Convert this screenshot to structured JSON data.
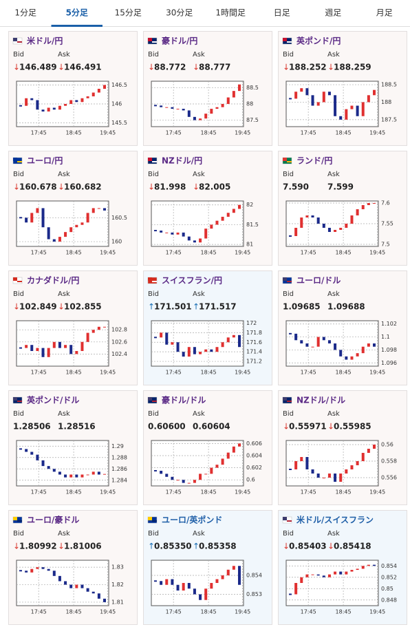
{
  "tabs": [
    "1分足",
    "5分足",
    "15分足",
    "30分足",
    "1時間足",
    "日足",
    "週足",
    "月足"
  ],
  "active_tab": 1,
  "labels": {
    "bid": "Bid",
    "ask": "Ask"
  },
  "time_labels": [
    "17:45",
    "18:45",
    "19:45"
  ],
  "cards": [
    {
      "title": "米ドル/円",
      "title_color": "#5b2a86",
      "bg": "#fbf7f6",
      "flag": [
        "#ffffff",
        "#b22234",
        "#3c3b6e"
      ],
      "arrow": "↓",
      "arrow_color": "#d9342b",
      "bid": "146.489",
      "ask": "146.491",
      "ylim": [
        145.4,
        146.6
      ],
      "yticks": [
        145.5,
        146,
        146.5
      ],
      "closes": [
        145.95,
        146.15,
        146.1,
        145.85,
        145.8,
        145.9,
        145.85,
        145.95,
        146.0,
        146.1,
        146.05,
        146.15,
        146.2,
        146.3,
        146.4,
        146.5
      ]
    },
    {
      "title": "豪ドル/円",
      "title_color": "#5b2a86",
      "bg": "#fbf7f6",
      "flag": [
        "#012169",
        "#ffffff",
        "#c8102e"
      ],
      "arrow": "↓",
      "arrow_color": "#d9342b",
      "bid": "88.772",
      "ask": "88.777",
      "ylim": [
        87.3,
        88.7
      ],
      "yticks": [
        87.5,
        88,
        88.5
      ],
      "closes": [
        87.95,
        87.9,
        87.9,
        87.85,
        87.85,
        87.8,
        87.6,
        87.5,
        87.55,
        87.7,
        87.85,
        87.9,
        88.0,
        88.2,
        88.4,
        88.6
      ]
    },
    {
      "title": "英ポンド/円",
      "title_color": "#5b2a86",
      "bg": "#fbf7f6",
      "flag": [
        "#012169",
        "#ffffff",
        "#c8102e"
      ],
      "arrow": "↓",
      "arrow_color": "#d9342b",
      "bid": "188.252",
      "ask": "188.259",
      "ylim": [
        187.3,
        188.6
      ],
      "yticks": [
        187.5,
        188,
        188.5
      ],
      "closes": [
        188.1,
        188.3,
        188.4,
        188.2,
        187.9,
        188.0,
        188.3,
        188.2,
        187.6,
        187.5,
        187.8,
        187.9,
        187.6,
        188.0,
        188.2,
        188.35
      ]
    },
    {
      "title": "ユーロ/円",
      "title_color": "#5b2a86",
      "bg": "#fbf7f6",
      "flag": [
        "#003399",
        "#ffcc00",
        "#003399"
      ],
      "arrow": "↓",
      "arrow_color": "#d9342b",
      "bid": "160.678",
      "ask": "160.682",
      "ylim": [
        159.9,
        160.85
      ],
      "yticks": [
        160,
        160.5
      ],
      "closes": [
        160.5,
        160.4,
        160.6,
        160.7,
        160.3,
        160.05,
        160.0,
        160.1,
        160.2,
        160.3,
        160.35,
        160.4,
        160.6,
        160.7,
        160.7,
        160.65
      ]
    },
    {
      "title": "NZドル/円",
      "title_color": "#5b2a86",
      "bg": "#fbf7f6",
      "flag": [
        "#012169",
        "#ffffff",
        "#c8102e"
      ],
      "arrow": "↓",
      "arrow_color": "#d9342b",
      "bid": "81.998",
      "ask": "82.005",
      "ylim": [
        80.95,
        82.1
      ],
      "yticks": [
        81,
        81.5,
        82
      ],
      "closes": [
        81.35,
        81.3,
        81.3,
        81.25,
        81.3,
        81.2,
        81.1,
        81.05,
        81.15,
        81.4,
        81.5,
        81.6,
        81.7,
        81.8,
        81.9,
        82.0
      ]
    },
    {
      "title": "ランド/円",
      "title_color": "#5b2a86",
      "bg": "#fbf7f6",
      "flag": [
        "#007a4d",
        "#ffb612",
        "#de3831"
      ],
      "bid": "7.590",
      "ask": "7.599",
      "ylim": [
        7.495,
        7.605
      ],
      "yticks": [
        7.5,
        7.55,
        7.6
      ],
      "closes": [
        7.52,
        7.54,
        7.565,
        7.57,
        7.565,
        7.55,
        7.54,
        7.53,
        7.535,
        7.54,
        7.55,
        7.57,
        7.585,
        7.595,
        7.6,
        7.6
      ]
    },
    {
      "title": "カナダドル/円",
      "title_color": "#5b2a86",
      "bg": "#fbf7f6",
      "flag": [
        "#ffffff",
        "#d52b1e",
        "#d52b1e"
      ],
      "arrow": "↓",
      "arrow_color": "#d9342b",
      "bid": "102.849",
      "ask": "102.855",
      "ylim": [
        102.2,
        102.95
      ],
      "yticks": [
        102.4,
        102.6,
        102.8
      ],
      "closes": [
        102.5,
        102.55,
        102.45,
        102.5,
        102.35,
        102.5,
        102.6,
        102.5,
        102.55,
        102.4,
        102.45,
        102.6,
        102.75,
        102.8,
        102.85,
        102.85
      ]
    },
    {
      "title": "スイスフラン/円",
      "title_color": "#5b2a86",
      "bg": "#f1f7fc",
      "flag": [
        "#d52b1e",
        "#ffffff",
        "#d52b1e"
      ],
      "arrow": "↑",
      "arrow_color": "#1a6fb5",
      "bid": "171.501",
      "ask": "171.517",
      "ylim": [
        171.1,
        172.05
      ],
      "yticks": [
        171.2,
        171.4,
        171.6,
        171.8,
        172
      ],
      "closes": [
        171.7,
        171.8,
        171.55,
        171.6,
        171.4,
        171.3,
        171.5,
        171.35,
        171.4,
        171.45,
        171.4,
        171.5,
        171.6,
        171.7,
        171.75,
        171.5
      ]
    },
    {
      "title": "ユーロ/ドル",
      "title_color": "#5b2a86",
      "bg": "#fbf7f6",
      "flag": [
        "#003399",
        "#b22234",
        "#3c3b6e"
      ],
      "bid": "1.09685",
      "ask": "1.09688",
      "ylim": [
        1.0955,
        1.1025
      ],
      "yticks": [
        1.096,
        1.098,
        1.1,
        1.102
      ],
      "closes": [
        1.1005,
        1.0995,
        1.099,
        1.0985,
        1.0985,
        1.1,
        1.0995,
        1.099,
        1.098,
        1.097,
        1.0965,
        1.097,
        1.0975,
        1.0985,
        1.099,
        1.0985
      ]
    },
    {
      "title": "英ポンド/ドル",
      "title_color": "#5b2a86",
      "bg": "#fbf7f6",
      "flag": [
        "#012169",
        "#b22234",
        "#3c3b6e"
      ],
      "bid": "1.28506",
      "ask": "1.28516",
      "ylim": [
        1.283,
        1.291
      ],
      "yticks": [
        1.284,
        1.286,
        1.288,
        1.29
      ],
      "closes": [
        1.2895,
        1.289,
        1.2885,
        1.2875,
        1.2865,
        1.286,
        1.2855,
        1.285,
        1.2845,
        1.285,
        1.2845,
        1.285,
        1.285,
        1.2855,
        1.285,
        1.2851
      ]
    },
    {
      "title": "豪ドル/ドル",
      "title_color": "#5b2a86",
      "bg": "#fbf7f6",
      "flag": [
        "#012169",
        "#b22234",
        "#3c3b6e"
      ],
      "bid": "0.60600",
      "ask": "0.60604",
      "ylim": [
        0.599,
        0.6065
      ],
      "yticks": [
        0.6,
        0.602,
        0.604,
        0.606
      ],
      "closes": [
        0.6015,
        0.601,
        0.6005,
        0.6,
        0.6,
        0.5995,
        0.5995,
        0.6,
        0.601,
        0.601,
        0.602,
        0.6025,
        0.6035,
        0.6045,
        0.6055,
        0.606
      ]
    },
    {
      "title": "NZドル/ドル",
      "title_color": "#5b2a86",
      "bg": "#fbf7f6",
      "flag": [
        "#012169",
        "#b22234",
        "#3c3b6e"
      ],
      "arrow": "↓",
      "arrow_color": "#d9342b",
      "bid": "0.55971",
      "ask": "0.55985",
      "ylim": [
        0.555,
        0.5605
      ],
      "yticks": [
        0.556,
        0.558,
        0.56
      ],
      "closes": [
        0.557,
        0.558,
        0.5585,
        0.557,
        0.5565,
        0.556,
        0.556,
        0.5565,
        0.5555,
        0.5565,
        0.557,
        0.5575,
        0.558,
        0.559,
        0.5595,
        0.56
      ]
    },
    {
      "title": "ユーロ/豪ドル",
      "title_color": "#5b2a86",
      "bg": "#fbf7f6",
      "flag": [
        "#003399",
        "#012169",
        "#ffcc00"
      ],
      "arrow": "↓",
      "arrow_color": "#d9342b",
      "bid": "1.80992",
      "ask": "1.81006",
      "ylim": [
        1.808,
        1.834
      ],
      "yticks": [
        1.81,
        1.82,
        1.83
      ],
      "closes": [
        1.828,
        1.827,
        1.829,
        1.83,
        1.829,
        1.828,
        1.825,
        1.822,
        1.82,
        1.818,
        1.82,
        1.818,
        1.816,
        1.815,
        1.812,
        1.81
      ]
    },
    {
      "title": "ユーロ/英ポンド",
      "title_color": "#1f5fa8",
      "bg": "#f1f7fc",
      "flag": [
        "#003399",
        "#012169",
        "#ffcc00"
      ],
      "arrow": "↑",
      "arrow_color": "#1a6fb5",
      "bid": "0.85350",
      "ask": "0.85358",
      "ylim": [
        0.8524,
        0.8548
      ],
      "yticks": [
        0.853,
        0.854
      ],
      "closes": [
        0.8537,
        0.8535,
        0.8538,
        0.8535,
        0.8532,
        0.8536,
        0.8533,
        0.853,
        0.8527,
        0.8533,
        0.8536,
        0.8538,
        0.854,
        0.8543,
        0.8545,
        0.8535
      ]
    },
    {
      "title": "米ドル/スイスフラン",
      "title_color": "#1f5fa8",
      "bg": "#f1f7fc",
      "flag": [
        "#ffffff",
        "#b22234",
        "#3c3b6e"
      ],
      "arrow": "↓",
      "arrow_color": "#d9342b",
      "bid": "0.85403",
      "ask": "0.85418",
      "ylim": [
        0.847,
        0.855
      ],
      "yticks": [
        0.848,
        0.85,
        0.852,
        0.854
      ],
      "closes": [
        0.849,
        0.851,
        0.852,
        0.8525,
        0.8525,
        0.8523,
        0.852,
        0.8525,
        0.853,
        0.8525,
        0.853,
        0.8533,
        0.8535,
        0.854,
        0.8542,
        0.854
      ]
    }
  ]
}
